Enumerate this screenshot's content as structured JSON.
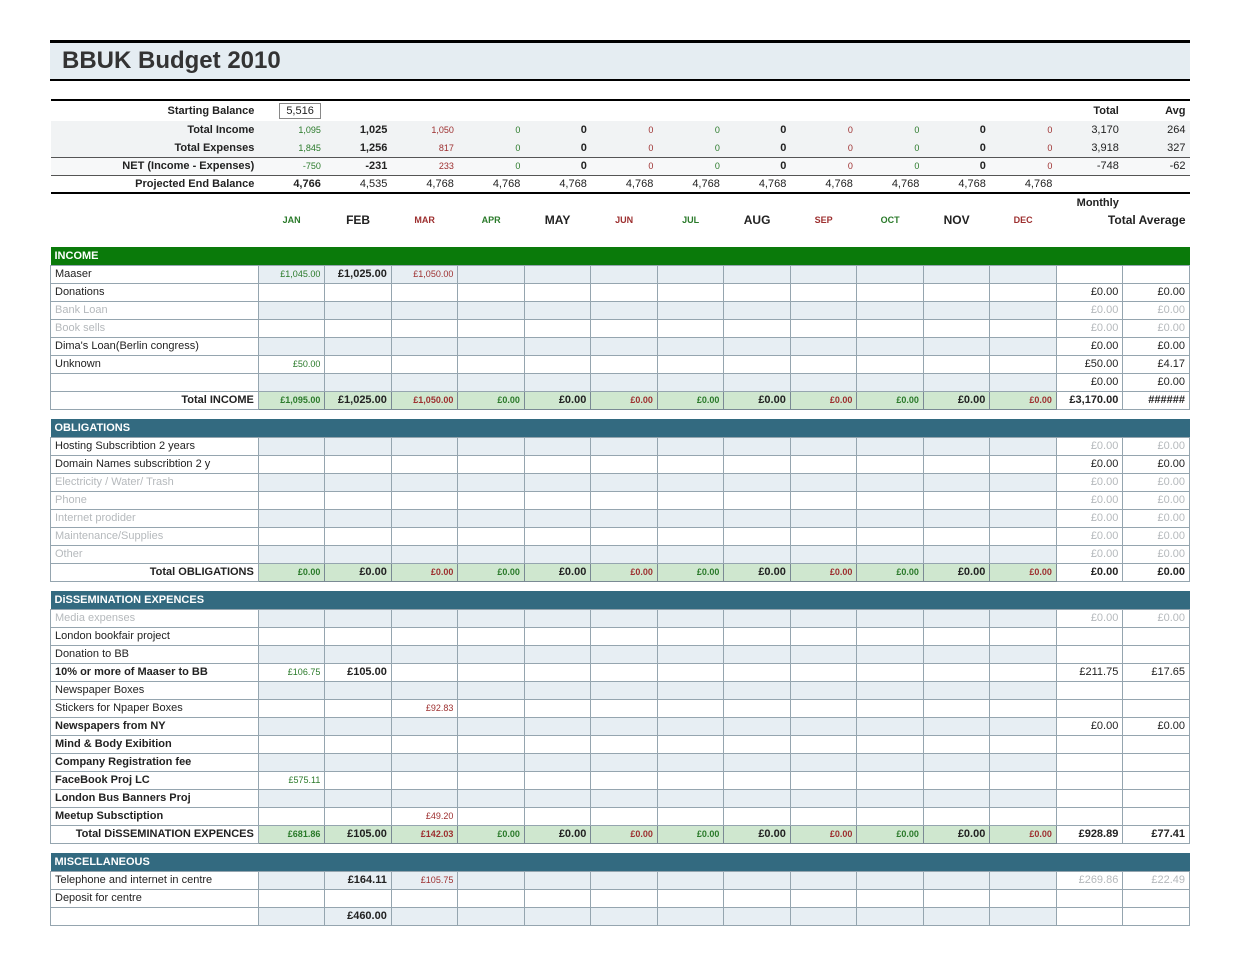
{
  "title": "BBUK Budget 2010",
  "colors": {
    "header_bg": "#e5edf2",
    "section_green": "#0a7a0a",
    "section_blue": "#336a80",
    "cell_border": "#95a5af",
    "cell_shade": "#e7eef3",
    "total_row_bg": "#cfe7cf",
    "dim_text": "#b5b9bc",
    "green_text": "#2a7a2a",
    "red_text": "#9d2f2f"
  },
  "months": [
    "JAN",
    "FEB",
    "MAR",
    "APR",
    "MAY",
    "JUN",
    "JUL",
    "AUG",
    "SEP",
    "OCT",
    "NOV",
    "DEC"
  ],
  "month_emph": [
    false,
    true,
    false,
    false,
    true,
    false,
    false,
    true,
    false,
    false,
    true,
    false
  ],
  "month_color": [
    "green",
    "black",
    "red",
    "green",
    "black",
    "red",
    "green",
    "black",
    "red",
    "green",
    "black",
    "red"
  ],
  "summary_labels": {
    "starting_balance": "Starting Balance",
    "total_income": "Total Income",
    "total_expenses": "Total Expenses",
    "net": "NET (Income - Expenses)",
    "projected": "Projected End Balance",
    "total": "Total",
    "avg": "Avg",
    "monthly": "Monthly",
    "total_average": "Total Average"
  },
  "summary": {
    "starting_balance": "5,516",
    "total_income": {
      "m": [
        "1,095",
        "1,025",
        "1,050",
        "0",
        "0",
        "0",
        "0",
        "0",
        "0",
        "0",
        "0",
        "0"
      ],
      "total": "3,170",
      "avg": "264"
    },
    "total_expenses": {
      "m": [
        "1,845",
        "1,256",
        "817",
        "0",
        "0",
        "0",
        "0",
        "0",
        "0",
        "0",
        "0",
        "0"
      ],
      "total": "3,918",
      "avg": "327"
    },
    "net": {
      "m": [
        "-750",
        "-231",
        "233",
        "0",
        "0",
        "0",
        "0",
        "0",
        "0",
        "0",
        "0",
        "0"
      ],
      "total": "-748",
      "avg": "-62"
    },
    "projected": {
      "m": [
        "4,766",
        "4,535",
        "4,768",
        "4,768",
        "4,768",
        "4,768",
        "4,768",
        "4,768",
        "4,768",
        "4,768",
        "4,768",
        "4,768"
      ]
    }
  },
  "sections": [
    {
      "name": "INCOME",
      "header_style": "green",
      "total_label": "Total INCOME",
      "totals": {
        "m": [
          "£1,095.00",
          "£1,025.00",
          "£1,050.00",
          "£0.00",
          "£0.00",
          "£0.00",
          "£0.00",
          "£0.00",
          "£0.00",
          "£0.00",
          "£0.00",
          "£0.00"
        ],
        "total": "£3,170.00",
        "avg": "######"
      },
      "rows": [
        {
          "label": "Maaser",
          "m": [
            "£1,045.00",
            "£1,025.00",
            "£1,050.00",
            "",
            "",
            "",
            "",
            "",
            "",
            "",
            "",
            ""
          ],
          "total": "",
          "avg": ""
        },
        {
          "label": "Donations",
          "m": [
            "",
            "",
            "",
            "",
            "",
            "",
            "",
            "",
            "",
            "",
            "",
            ""
          ],
          "total": "£0.00",
          "avg": "£0.00"
        },
        {
          "label": "Bank Loan",
          "dim": true,
          "m": [
            "",
            "",
            "",
            "",
            "",
            "",
            "",
            "",
            "",
            "",
            "",
            ""
          ],
          "total": "£0.00",
          "avg": "£0.00",
          "tot_dim": true
        },
        {
          "label": "Book sells",
          "dim": true,
          "m": [
            "",
            "",
            "",
            "",
            "",
            "",
            "",
            "",
            "",
            "",
            "",
            ""
          ],
          "total": "£0.00",
          "avg": "£0.00",
          "tot_dim": true
        },
        {
          "label": "Dima's Loan(Berlin congress)",
          "m": [
            "",
            "",
            "",
            "",
            "",
            "",
            "",
            "",
            "",
            "",
            "",
            ""
          ],
          "total": "£0.00",
          "avg": "£0.00"
        },
        {
          "label": "Unknown",
          "m": [
            "£50.00",
            "",
            "",
            "",
            "",
            "",
            "",
            "",
            "",
            "",
            "",
            ""
          ],
          "total": "£50.00",
          "avg": "£4.17"
        },
        {
          "label": "",
          "m": [
            "",
            "",
            "",
            "",
            "",
            "",
            "",
            "",
            "",
            "",
            "",
            ""
          ],
          "total": "£0.00",
          "avg": "£0.00"
        }
      ]
    },
    {
      "name": "OBLIGATIONS",
      "header_style": "blue",
      "total_label": "Total OBLIGATIONS",
      "totals": {
        "m": [
          "£0.00",
          "£0.00",
          "£0.00",
          "£0.00",
          "£0.00",
          "£0.00",
          "£0.00",
          "£0.00",
          "£0.00",
          "£0.00",
          "£0.00",
          "£0.00"
        ],
        "total": "£0.00",
        "avg": "£0.00"
      },
      "rows": [
        {
          "label": "Hosting Subscribtion 2 years",
          "m": [
            "",
            "",
            "",
            "",
            "",
            "",
            "",
            "",
            "",
            "",
            "",
            ""
          ],
          "total": "£0.00",
          "avg": "£0.00",
          "tot_dim": true
        },
        {
          "label": "Domain Names subscribtion 2 y",
          "m": [
            "",
            "",
            "",
            "",
            "",
            "",
            "",
            "",
            "",
            "",
            "",
            ""
          ],
          "total": "£0.00",
          "avg": "£0.00"
        },
        {
          "label": "Electricity / Water/ Trash",
          "dim": true,
          "m": [
            "",
            "",
            "",
            "",
            "",
            "",
            "",
            "",
            "",
            "",
            "",
            ""
          ],
          "total": "£0.00",
          "avg": "£0.00",
          "tot_dim": true
        },
        {
          "label": "Phone",
          "dim": true,
          "m": [
            "",
            "",
            "",
            "",
            "",
            "",
            "",
            "",
            "",
            "",
            "",
            ""
          ],
          "total": "£0.00",
          "avg": "£0.00",
          "tot_dim": true
        },
        {
          "label": "Internet prodider",
          "dim": true,
          "m": [
            "",
            "",
            "",
            "",
            "",
            "",
            "",
            "",
            "",
            "",
            "",
            ""
          ],
          "total": "£0.00",
          "avg": "£0.00",
          "tot_dim": true
        },
        {
          "label": "Maintenance/Supplies",
          "dim": true,
          "m": [
            "",
            "",
            "",
            "",
            "",
            "",
            "",
            "",
            "",
            "",
            "",
            ""
          ],
          "total": "£0.00",
          "avg": "£0.00",
          "tot_dim": true
        },
        {
          "label": "Other",
          "dim": true,
          "m": [
            "",
            "",
            "",
            "",
            "",
            "",
            "",
            "",
            "",
            "",
            "",
            ""
          ],
          "total": "£0.00",
          "avg": "£0.00",
          "tot_dim": true
        }
      ]
    },
    {
      "name": "DiSSEMINATION EXPENCES",
      "header_style": "blue",
      "total_label": "Total DiSSEMINATION EXPENCES",
      "totals": {
        "m": [
          "£681.86",
          "£105.00",
          "£142.03",
          "£0.00",
          "£0.00",
          "£0.00",
          "£0.00",
          "£0.00",
          "£0.00",
          "£0.00",
          "£0.00",
          "£0.00"
        ],
        "total": "£928.89",
        "avg": "£77.41"
      },
      "rows": [
        {
          "label": "Media expenses",
          "dim": true,
          "m": [
            "",
            "",
            "",
            "",
            "",
            "",
            "",
            "",
            "",
            "",
            "",
            ""
          ],
          "total": "£0.00",
          "avg": "£0.00",
          "tot_dim": true
        },
        {
          "label": "London bookfair project",
          "m": [
            "",
            "",
            "",
            "",
            "",
            "",
            "",
            "",
            "",
            "",
            "",
            ""
          ],
          "total": "",
          "avg": ""
        },
        {
          "label": "Donation to BB",
          "m": [
            "",
            "",
            "",
            "",
            "",
            "",
            "",
            "",
            "",
            "",
            "",
            ""
          ],
          "total": "",
          "avg": ""
        },
        {
          "label": "10% or more of Maaser to BB",
          "bold": true,
          "m": [
            "£106.75",
            "£105.00",
            "",
            "",
            "",
            "",
            "",
            "",
            "",
            "",
            "",
            ""
          ],
          "total": "£211.75",
          "avg": "£17.65"
        },
        {
          "label": "Newspaper Boxes",
          "m": [
            "",
            "",
            "",
            "",
            "",
            "",
            "",
            "",
            "",
            "",
            "",
            ""
          ],
          "total": "",
          "avg": ""
        },
        {
          "label": "Stickers for Npaper Boxes",
          "m": [
            "",
            "",
            "£92.83",
            "",
            "",
            "",
            "",
            "",
            "",
            "",
            "",
            ""
          ],
          "total": "",
          "avg": ""
        },
        {
          "label": "Newspapers from NY",
          "bold": true,
          "m": [
            "",
            "",
            "",
            "",
            "",
            "",
            "",
            "",
            "",
            "",
            "",
            ""
          ],
          "total": "£0.00",
          "avg": "£0.00"
        },
        {
          "label": "Mind & Body Exibition",
          "bold": true,
          "m": [
            "",
            "",
            "",
            "",
            "",
            "",
            "",
            "",
            "",
            "",
            "",
            ""
          ],
          "total": "",
          "avg": ""
        },
        {
          "label": "Company Registration fee",
          "bold": true,
          "m": [
            "",
            "",
            "",
            "",
            "",
            "",
            "",
            "",
            "",
            "",
            "",
            ""
          ],
          "total": "",
          "avg": ""
        },
        {
          "label": "FaceBook Proj LC",
          "bold": true,
          "m": [
            "£575.11",
            "",
            "",
            "",
            "",
            "",
            "",
            "",
            "",
            "",
            "",
            ""
          ],
          "total": "",
          "avg": ""
        },
        {
          "label": "London Bus Banners Proj",
          "bold": true,
          "m": [
            "",
            "",
            "",
            "",
            "",
            "",
            "",
            "",
            "",
            "",
            "",
            ""
          ],
          "total": "",
          "avg": ""
        },
        {
          "label": "Meetup Subsctiption",
          "bold": true,
          "m": [
            "",
            "",
            "£49.20",
            "",
            "",
            "",
            "",
            "",
            "",
            "",
            "",
            ""
          ],
          "total": "",
          "avg": ""
        }
      ]
    },
    {
      "name": "MISCELLANEOUS",
      "header_style": "blue",
      "total_label": "",
      "totals": null,
      "rows": [
        {
          "label": "Telephone and internet in centre",
          "m": [
            "",
            "£164.11",
            "£105.75",
            "",
            "",
            "",
            "",
            "",
            "",
            "",
            "",
            ""
          ],
          "total": "£269.86",
          "avg": "£22.49",
          "tot_dim": true
        },
        {
          "label": "Deposit for centre",
          "m": [
            "",
            "",
            "",
            "",
            "",
            "",
            "",
            "",
            "",
            "",
            "",
            ""
          ],
          "total": "",
          "avg": ""
        },
        {
          "label": "",
          "m": [
            "",
            "£460.00",
            "",
            "",
            "",
            "",
            "",
            "",
            "",
            "",
            "",
            ""
          ],
          "total": "",
          "avg": ""
        }
      ]
    }
  ]
}
